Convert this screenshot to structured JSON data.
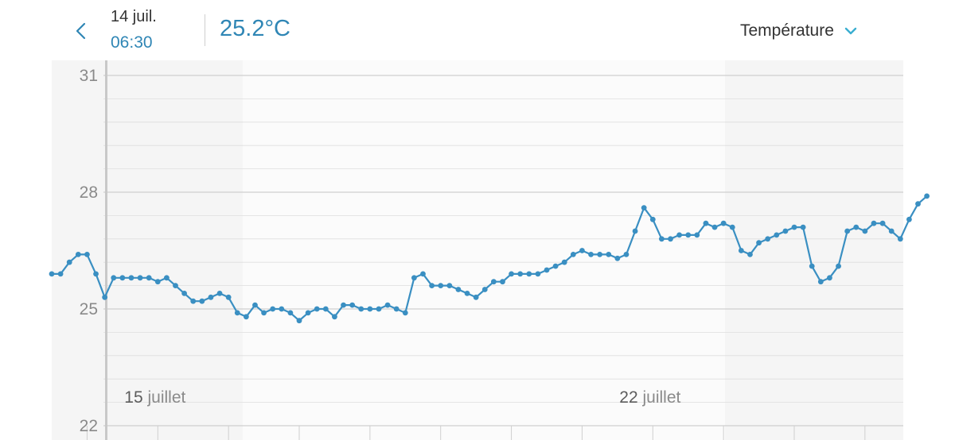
{
  "header": {
    "date": "14 juil.",
    "time": "06:30",
    "value": "25.2°C",
    "metric": "Température"
  },
  "colors": {
    "accent": "#2f86b5",
    "line": "#3a8fc2",
    "grid": "#dedede",
    "plot_background": "#f5f5f5"
  },
  "icons": {
    "back": "chevron-left-icon",
    "dropdown": "chevron-down-icon"
  },
  "chart_data": {
    "type": "line",
    "title": "",
    "xlabel": "",
    "ylabel": "",
    "ylim": [
      22,
      31
    ],
    "yticks": [
      22,
      25,
      28,
      31
    ],
    "x_range": [
      "2019-07-13 12:00",
      "2019-07-25 13:00"
    ],
    "x_tick_labels": [
      {
        "x": "2019-07-15 00:00",
        "day": "15",
        "month": "juillet"
      },
      {
        "x": "2019-07-22 00:00",
        "day": "22",
        "month": "juillet"
      }
    ],
    "cursor_x": "2019-07-14 06:30",
    "series": [
      {
        "points": [
          [
            "2019-07-13 12:00",
            25.9
          ],
          [
            "2019-07-13 15:00",
            25.9
          ],
          [
            "2019-07-13 18:00",
            26.2
          ],
          [
            "2019-07-13 21:00",
            26.4
          ],
          [
            "2019-07-14 00:00",
            26.4
          ],
          [
            "2019-07-14 03:00",
            25.9
          ],
          [
            "2019-07-14 06:00",
            25.3
          ],
          [
            "2019-07-14 09:00",
            25.8
          ],
          [
            "2019-07-14 12:00",
            25.8
          ],
          [
            "2019-07-14 15:00",
            25.8
          ],
          [
            "2019-07-14 18:00",
            25.8
          ],
          [
            "2019-07-14 21:00",
            25.8
          ],
          [
            "2019-07-15 00:00",
            25.7
          ],
          [
            "2019-07-15 03:00",
            25.8
          ],
          [
            "2019-07-15 06:00",
            25.6
          ],
          [
            "2019-07-15 09:00",
            25.4
          ],
          [
            "2019-07-15 12:00",
            25.2
          ],
          [
            "2019-07-15 15:00",
            25.2
          ],
          [
            "2019-07-15 18:00",
            25.3
          ],
          [
            "2019-07-15 21:00",
            25.4
          ],
          [
            "2019-07-16 00:00",
            25.3
          ],
          [
            "2019-07-16 03:00",
            24.9
          ],
          [
            "2019-07-16 06:00",
            24.8
          ],
          [
            "2019-07-16 09:00",
            25.1
          ],
          [
            "2019-07-16 12:00",
            24.9
          ],
          [
            "2019-07-16 15:00",
            25.0
          ],
          [
            "2019-07-16 18:00",
            25.0
          ],
          [
            "2019-07-16 21:00",
            24.9
          ],
          [
            "2019-07-17 00:00",
            24.7
          ],
          [
            "2019-07-17 03:00",
            24.9
          ],
          [
            "2019-07-17 06:00",
            25.0
          ],
          [
            "2019-07-17 09:00",
            25.0
          ],
          [
            "2019-07-17 12:00",
            24.8
          ],
          [
            "2019-07-17 15:00",
            25.1
          ],
          [
            "2019-07-17 18:00",
            25.1
          ],
          [
            "2019-07-17 21:00",
            25.0
          ],
          [
            "2019-07-18 00:00",
            25.0
          ],
          [
            "2019-07-18 03:00",
            25.0
          ],
          [
            "2019-07-18 06:00",
            25.1
          ],
          [
            "2019-07-18 09:00",
            25.0
          ],
          [
            "2019-07-18 12:00",
            24.9
          ],
          [
            "2019-07-18 15:00",
            25.8
          ],
          [
            "2019-07-18 18:00",
            25.9
          ],
          [
            "2019-07-18 21:00",
            25.6
          ],
          [
            "2019-07-19 00:00",
            25.6
          ],
          [
            "2019-07-19 03:00",
            25.6
          ],
          [
            "2019-07-19 06:00",
            25.5
          ],
          [
            "2019-07-19 09:00",
            25.4
          ],
          [
            "2019-07-19 12:00",
            25.3
          ],
          [
            "2019-07-19 15:00",
            25.5
          ],
          [
            "2019-07-19 18:00",
            25.7
          ],
          [
            "2019-07-19 21:00",
            25.7
          ],
          [
            "2019-07-20 00:00",
            25.9
          ],
          [
            "2019-07-20 03:00",
            25.9
          ],
          [
            "2019-07-20 06:00",
            25.9
          ],
          [
            "2019-07-20 09:00",
            25.9
          ],
          [
            "2019-07-20 12:00",
            26.0
          ],
          [
            "2019-07-20 15:00",
            26.1
          ],
          [
            "2019-07-20 18:00",
            26.2
          ],
          [
            "2019-07-20 21:00",
            26.4
          ],
          [
            "2019-07-21 00:00",
            26.5
          ],
          [
            "2019-07-21 03:00",
            26.4
          ],
          [
            "2019-07-21 06:00",
            26.4
          ],
          [
            "2019-07-21 09:00",
            26.4
          ],
          [
            "2019-07-21 12:00",
            26.3
          ],
          [
            "2019-07-21 15:00",
            26.4
          ],
          [
            "2019-07-21 18:00",
            27.0
          ],
          [
            "2019-07-21 21:00",
            27.6
          ],
          [
            "2019-07-22 00:00",
            27.3
          ],
          [
            "2019-07-22 03:00",
            26.8
          ],
          [
            "2019-07-22 06:00",
            26.8
          ],
          [
            "2019-07-22 09:00",
            26.9
          ],
          [
            "2019-07-22 12:00",
            26.9
          ],
          [
            "2019-07-22 15:00",
            26.9
          ],
          [
            "2019-07-22 18:00",
            27.2
          ],
          [
            "2019-07-22 21:00",
            27.1
          ],
          [
            "2019-07-23 00:00",
            27.2
          ],
          [
            "2019-07-23 03:00",
            27.1
          ],
          [
            "2019-07-23 06:00",
            26.5
          ],
          [
            "2019-07-23 09:00",
            26.4
          ],
          [
            "2019-07-23 12:00",
            26.7
          ],
          [
            "2019-07-23 15:00",
            26.8
          ],
          [
            "2019-07-23 18:00",
            26.9
          ],
          [
            "2019-07-23 21:00",
            27.0
          ],
          [
            "2019-07-24 00:00",
            27.1
          ],
          [
            "2019-07-24 03:00",
            27.1
          ],
          [
            "2019-07-24 06:00",
            26.1
          ],
          [
            "2019-07-24 09:00",
            25.7
          ],
          [
            "2019-07-24 12:00",
            25.8
          ],
          [
            "2019-07-24 15:00",
            26.1
          ],
          [
            "2019-07-24 18:00",
            27.0
          ],
          [
            "2019-07-24 21:00",
            27.1
          ],
          [
            "2019-07-25 00:00",
            27.0
          ],
          [
            "2019-07-25 03:00",
            27.2
          ],
          [
            "2019-07-25 06:00",
            27.2
          ],
          [
            "2019-07-25 09:00",
            27.0
          ],
          [
            "2019-07-25 12:00",
            26.8
          ],
          [
            "2019-07-25 15:00",
            27.3
          ],
          [
            "2019-07-25 18:00",
            27.7
          ],
          [
            "2019-07-25 21:00",
            27.9
          ]
        ]
      }
    ]
  }
}
